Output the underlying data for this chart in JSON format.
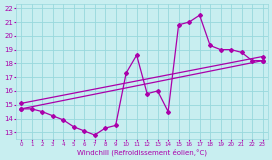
{
  "xlabel": "Windchill (Refroidissement éolien,°C)",
  "bg_color": "#c8eef0",
  "grid_color": "#98d8dc",
  "line_color": "#aa00aa",
  "xlim": [
    -0.5,
    23.5
  ],
  "ylim": [
    12.5,
    22.3
  ],
  "xticks": [
    0,
    1,
    2,
    3,
    4,
    5,
    6,
    7,
    8,
    9,
    10,
    11,
    12,
    13,
    14,
    15,
    16,
    17,
    18,
    19,
    20,
    21,
    22,
    23
  ],
  "yticks": [
    13,
    14,
    15,
    16,
    17,
    18,
    19,
    20,
    21,
    22
  ],
  "series": [
    [
      0,
      14.7
    ],
    [
      1,
      14.7
    ],
    [
      2,
      14.5
    ],
    [
      3,
      14.2
    ],
    [
      4,
      13.9
    ],
    [
      5,
      13.4
    ],
    [
      6,
      13.1
    ],
    [
      7,
      12.8
    ],
    [
      8,
      13.3
    ],
    [
      9,
      13.5
    ],
    [
      10,
      17.3
    ],
    [
      11,
      18.6
    ],
    [
      12,
      15.8
    ],
    [
      13,
      16.0
    ],
    [
      14,
      14.5
    ],
    [
      15,
      20.8
    ],
    [
      16,
      21.0
    ],
    [
      17,
      21.5
    ],
    [
      18,
      19.3
    ],
    [
      19,
      19.0
    ],
    [
      20,
      19.0
    ],
    [
      21,
      18.8
    ],
    [
      22,
      18.2
    ],
    [
      23,
      18.2
    ]
  ],
  "line1": [
    [
      0,
      14.7
    ],
    [
      23,
      18.2
    ]
  ],
  "line2": [
    [
      0,
      15.1
    ],
    [
      23,
      18.5
    ]
  ]
}
